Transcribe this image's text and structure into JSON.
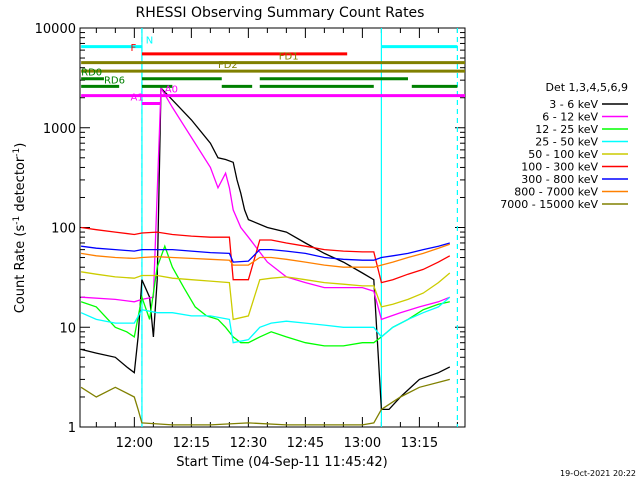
{
  "chart_data": {
    "type": "line",
    "title": "RHESSI Observing Summary Count Rates",
    "xlabel": "Start Time (04-Sep-11 11:45:42)",
    "ylabel": "Count Rate (s⁻¹ detector⁻¹)",
    "ylabel_parts": {
      "prefix": "Count Rate (s",
      "exp1": "-1",
      "mid": " detector",
      "exp2": "-1",
      "suffix": ")"
    },
    "footer_date": "19-Oct-2021 20:22",
    "y_scale": "log",
    "ylim": [
      1,
      10000
    ],
    "xlim": [
      "11:45:42",
      "13:27:00"
    ],
    "y_ticks": [
      {
        "value": 1,
        "label": "1"
      },
      {
        "value": 10,
        "label": "10"
      },
      {
        "value": 100,
        "label": "100"
      },
      {
        "value": 1000,
        "label": "1000"
      },
      {
        "value": 10000,
        "label": "10000"
      }
    ],
    "x_ticks": [
      {
        "time": "12:00",
        "label": "12:00"
      },
      {
        "time": "12:15",
        "label": "12:15"
      },
      {
        "time": "12:30",
        "label": "12:30"
      },
      {
        "time": "12:45",
        "label": "12:45"
      },
      {
        "time": "13:00",
        "label": "13:00"
      },
      {
        "time": "13:15",
        "label": "13:15"
      }
    ],
    "grid": false,
    "legend": {
      "placement": "right",
      "title": "Det 1,3,4,5,6,9"
    },
    "series": [
      {
        "name": "3 - 6 keV",
        "color": "#000000",
        "points": [
          [
            "11:46",
            6
          ],
          [
            "11:50",
            5.5
          ],
          [
            "11:55",
            5
          ],
          [
            "11:58",
            4
          ],
          [
            "12:00",
            3.5
          ],
          [
            "12:01",
            8
          ],
          [
            "12:02",
            30
          ],
          [
            "12:04",
            20
          ],
          [
            "12:05",
            8
          ],
          [
            "12:06",
            30
          ],
          [
            "12:07",
            2500
          ],
          [
            "12:10",
            1900
          ],
          [
            "12:15",
            1200
          ],
          [
            "12:20",
            700
          ],
          [
            "12:22",
            500
          ],
          [
            "12:24",
            480
          ],
          [
            "12:26",
            450
          ],
          [
            "12:27",
            300
          ],
          [
            "12:28",
            220
          ],
          [
            "12:29",
            150
          ],
          [
            "12:30",
            120
          ],
          [
            "12:35",
            100
          ],
          [
            "12:40",
            90
          ],
          [
            "12:45",
            70
          ],
          [
            "12:50",
            55
          ],
          [
            "12:55",
            45
          ],
          [
            "13:00",
            35
          ],
          [
            "13:03",
            30
          ],
          [
            "13:05",
            1.5
          ],
          [
            "13:07",
            1.5
          ],
          [
            "13:10",
            2
          ],
          [
            "13:15",
            3
          ],
          [
            "13:20",
            3.5
          ],
          [
            "13:23",
            4
          ]
        ]
      },
      {
        "name": "6 - 12 keV",
        "color": "#ff00ff",
        "points": [
          [
            "11:46",
            20
          ],
          [
            "11:55",
            19
          ],
          [
            "12:00",
            18
          ],
          [
            "12:02",
            19
          ],
          [
            "12:05",
            20
          ],
          [
            "12:07",
            2500
          ],
          [
            "12:10",
            1600
          ],
          [
            "12:15",
            800
          ],
          [
            "12:20",
            400
          ],
          [
            "12:22",
            250
          ],
          [
            "12:24",
            350
          ],
          [
            "12:25",
            250
          ],
          [
            "12:26",
            150
          ],
          [
            "12:28",
            100
          ],
          [
            "12:30",
            80
          ],
          [
            "12:35",
            45
          ],
          [
            "12:40",
            32
          ],
          [
            "12:45",
            28
          ],
          [
            "12:50",
            25
          ],
          [
            "12:55",
            25
          ],
          [
            "13:00",
            25
          ],
          [
            "13:03",
            23
          ],
          [
            "13:05",
            12
          ],
          [
            "13:10",
            14
          ],
          [
            "13:15",
            16
          ],
          [
            "13:20",
            18
          ],
          [
            "13:23",
            20
          ]
        ]
      },
      {
        "name": "12 - 25 keV",
        "color": "#00ff00",
        "points": [
          [
            "11:46",
            18
          ],
          [
            "11:50",
            16
          ],
          [
            "11:55",
            10
          ],
          [
            "11:58",
            9
          ],
          [
            "12:00",
            8
          ],
          [
            "12:02",
            20
          ],
          [
            "12:04",
            12
          ],
          [
            "12:06",
            40
          ],
          [
            "12:08",
            65
          ],
          [
            "12:10",
            40
          ],
          [
            "12:13",
            25
          ],
          [
            "12:16",
            16
          ],
          [
            "12:19",
            13
          ],
          [
            "12:22",
            12
          ],
          [
            "12:24",
            10
          ],
          [
            "12:26",
            8
          ],
          [
            "12:28",
            7
          ],
          [
            "12:30",
            7
          ],
          [
            "12:33",
            8
          ],
          [
            "12:36",
            9
          ],
          [
            "12:40",
            8
          ],
          [
            "12:45",
            7
          ],
          [
            "12:50",
            6.5
          ],
          [
            "12:55",
            6.5
          ],
          [
            "13:00",
            7
          ],
          [
            "13:03",
            7
          ],
          [
            "13:05",
            8
          ],
          [
            "13:08",
            10
          ],
          [
            "13:12",
            12
          ],
          [
            "13:16",
            15
          ],
          [
            "13:20",
            17
          ],
          [
            "13:23",
            18
          ]
        ]
      },
      {
        "name": "25 - 50 keV",
        "color": "#00ffff",
        "points": [
          [
            "11:46",
            14
          ],
          [
            "11:50",
            12
          ],
          [
            "11:55",
            11
          ],
          [
            "12:00",
            11
          ],
          [
            "12:02",
            15
          ],
          [
            "12:06",
            14
          ],
          [
            "12:10",
            14
          ],
          [
            "12:15",
            13
          ],
          [
            "12:20",
            13
          ],
          [
            "12:25",
            12
          ],
          [
            "12:26",
            7
          ],
          [
            "12:30",
            7.5
          ],
          [
            "12:33",
            10
          ],
          [
            "12:36",
            11
          ],
          [
            "12:40",
            11.5
          ],
          [
            "12:45",
            11
          ],
          [
            "12:50",
            10.5
          ],
          [
            "12:55",
            10
          ],
          [
            "13:00",
            10
          ],
          [
            "13:03",
            10
          ],
          [
            "13:05",
            8
          ],
          [
            "13:08",
            10
          ],
          [
            "13:12",
            12
          ],
          [
            "13:16",
            14
          ],
          [
            "13:20",
            16
          ],
          [
            "13:23",
            20
          ]
        ]
      },
      {
        "name": "50 - 100 keV",
        "color": "#cccc00",
        "points": [
          [
            "11:46",
            36
          ],
          [
            "11:50",
            34
          ],
          [
            "11:55",
            32
          ],
          [
            "12:00",
            31
          ],
          [
            "12:02",
            33
          ],
          [
            "12:06",
            33
          ],
          [
            "12:10",
            31
          ],
          [
            "12:15",
            30
          ],
          [
            "12:20",
            29
          ],
          [
            "12:25",
            28
          ],
          [
            "12:26",
            12
          ],
          [
            "12:30",
            13
          ],
          [
            "12:33",
            30
          ],
          [
            "12:36",
            31
          ],
          [
            "12:40",
            32
          ],
          [
            "12:45",
            30
          ],
          [
            "12:50",
            28
          ],
          [
            "12:55",
            27
          ],
          [
            "13:00",
            26
          ],
          [
            "13:03",
            26
          ],
          [
            "13:05",
            16
          ],
          [
            "13:08",
            17
          ],
          [
            "13:12",
            19
          ],
          [
            "13:16",
            22
          ],
          [
            "13:20",
            28
          ],
          [
            "13:23",
            35
          ]
        ]
      },
      {
        "name": "100 - 300 keV",
        "color": "#ff0000",
        "points": [
          [
            "11:46",
            100
          ],
          [
            "11:50",
            95
          ],
          [
            "11:55",
            90
          ],
          [
            "12:00",
            85
          ],
          [
            "12:02",
            88
          ],
          [
            "12:06",
            90
          ],
          [
            "12:10",
            85
          ],
          [
            "12:15",
            82
          ],
          [
            "12:20",
            80
          ],
          [
            "12:25",
            80
          ],
          [
            "12:26",
            30
          ],
          [
            "12:30",
            30
          ],
          [
            "12:33",
            75
          ],
          [
            "12:36",
            75
          ],
          [
            "12:40",
            70
          ],
          [
            "12:45",
            65
          ],
          [
            "12:50",
            60
          ],
          [
            "12:55",
            58
          ],
          [
            "13:00",
            57
          ],
          [
            "13:03",
            57
          ],
          [
            "13:05",
            28
          ],
          [
            "13:08",
            30
          ],
          [
            "13:12",
            34
          ],
          [
            "13:16",
            38
          ],
          [
            "13:20",
            45
          ],
          [
            "13:23",
            52
          ]
        ]
      },
      {
        "name": "300 - 800 keV",
        "color": "#0000ff",
        "points": [
          [
            "11:46",
            65
          ],
          [
            "11:50",
            62
          ],
          [
            "11:55",
            60
          ],
          [
            "12:00",
            58
          ],
          [
            "12:02",
            60
          ],
          [
            "12:06",
            60
          ],
          [
            "12:10",
            60
          ],
          [
            "12:15",
            58
          ],
          [
            "12:20",
            56
          ],
          [
            "12:25",
            55
          ],
          [
            "12:26",
            45
          ],
          [
            "12:30",
            46
          ],
          [
            "12:33",
            60
          ],
          [
            "12:36",
            60
          ],
          [
            "12:40",
            58
          ],
          [
            "12:45",
            55
          ],
          [
            "12:50",
            50
          ],
          [
            "12:55",
            48
          ],
          [
            "13:00",
            47
          ],
          [
            "13:03",
            47
          ],
          [
            "13:05",
            50
          ],
          [
            "13:08",
            52
          ],
          [
            "13:12",
            55
          ],
          [
            "13:16",
            60
          ],
          [
            "13:20",
            65
          ],
          [
            "13:23",
            70
          ]
        ]
      },
      {
        "name": "800 - 7000 keV",
        "color": "#ff8000",
        "points": [
          [
            "11:46",
            55
          ],
          [
            "11:50",
            52
          ],
          [
            "11:55",
            50
          ],
          [
            "12:00",
            49
          ],
          [
            "12:02",
            50
          ],
          [
            "12:06",
            51
          ],
          [
            "12:10",
            50
          ],
          [
            "12:15",
            49
          ],
          [
            "12:20",
            48
          ],
          [
            "12:25",
            47
          ],
          [
            "12:26",
            42
          ],
          [
            "12:30",
            42
          ],
          [
            "12:33",
            50
          ],
          [
            "12:36",
            50
          ],
          [
            "12:40",
            48
          ],
          [
            "12:45",
            45
          ],
          [
            "12:50",
            42
          ],
          [
            "12:55",
            40
          ],
          [
            "13:00",
            40
          ],
          [
            "13:03",
            40
          ],
          [
            "13:05",
            42
          ],
          [
            "13:08",
            45
          ],
          [
            "13:12",
            50
          ],
          [
            "13:16",
            55
          ],
          [
            "13:20",
            62
          ],
          [
            "13:23",
            68
          ]
        ]
      },
      {
        "name": "7000 - 15000 keV",
        "color": "#808000",
        "points": [
          [
            "11:46",
            2.5
          ],
          [
            "11:50",
            2
          ],
          [
            "11:55",
            2.5
          ],
          [
            "12:00",
            2
          ],
          [
            "12:01",
            1.5
          ],
          [
            "12:02",
            1.1
          ],
          [
            "12:10",
            1.05
          ],
          [
            "12:20",
            1.05
          ],
          [
            "12:30",
            1.1
          ],
          [
            "12:40",
            1.05
          ],
          [
            "12:50",
            1.05
          ],
          [
            "13:00",
            1.05
          ],
          [
            "13:03",
            1.1
          ],
          [
            "13:05",
            1.5
          ],
          [
            "13:10",
            2
          ],
          [
            "13:15",
            2.5
          ],
          [
            "13:23",
            3
          ]
        ]
      }
    ],
    "vertical_lines": [
      {
        "time": "12:02",
        "color": "#00ffff",
        "dashed": true
      },
      {
        "time": "12:02",
        "color": "#00ffff",
        "dashed": false
      },
      {
        "time": "13:05",
        "color": "#00ffff",
        "dashed": false
      },
      {
        "time": "13:25",
        "color": "#00ffff",
        "dashed": true
      }
    ],
    "flag_bars": [
      {
        "label": "N",
        "color": "#00ffff",
        "y": 6500,
        "segments": [
          [
            "11:46",
            "12:02"
          ],
          [
            "13:05",
            "13:25"
          ]
        ],
        "label_time": "12:03"
      },
      {
        "label": "F",
        "color": "#ff0000",
        "y": 5500,
        "segments": [
          [
            "12:02",
            "12:56"
          ]
        ],
        "label_time": "11:59"
      },
      {
        "label": "FD1",
        "color": "#808000",
        "y": 4500,
        "segments": [
          [
            "11:46",
            "13:27"
          ]
        ],
        "label_time": "12:38"
      },
      {
        "label": "FD2",
        "color": "#808000",
        "y": 3700,
        "segments": [
          [
            "11:46",
            "13:27"
          ]
        ],
        "label_time": "12:22"
      },
      {
        "label": "RD0",
        "color": "#008000",
        "y": 3100,
        "segments": [
          [
            "11:46",
            "11:52"
          ],
          [
            "12:02",
            "12:23"
          ],
          [
            "12:33",
            "13:12"
          ]
        ],
        "label_time": "11:46"
      },
      {
        "label": "RD6",
        "color": "#008000",
        "y": 2600,
        "segments": [
          [
            "11:46",
            "11:56"
          ],
          [
            "12:02",
            "12:10"
          ],
          [
            "12:23",
            "12:31"
          ],
          [
            "12:33",
            "13:03"
          ],
          [
            "13:13",
            "13:25"
          ]
        ],
        "label_time": "11:52"
      },
      {
        "label": "A1",
        "color": "#ff00ff",
        "y": 1750,
        "segments": [
          [
            "12:02",
            "12:07"
          ]
        ],
        "label_time": "11:59"
      },
      {
        "label": "A0",
        "color": "#ff00ff",
        "y": 2100,
        "segments": [
          [
            "11:46",
            "13:27"
          ]
        ],
        "label_time": "12:08"
      }
    ]
  }
}
